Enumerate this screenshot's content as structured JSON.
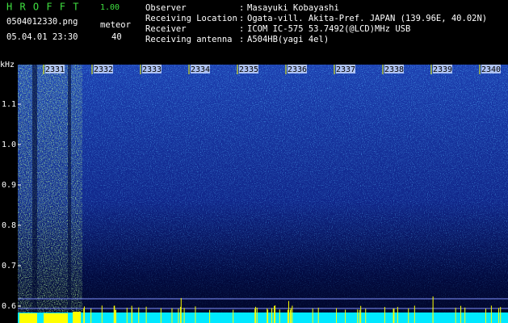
{
  "header": {
    "app": "H R O F F T",
    "version": "1.00",
    "file": "0504012330.png",
    "mode": "meteor",
    "count": "40",
    "datetime": "05.04.01 23:30",
    "separator": ":",
    "fields": [
      {
        "label": "Observer",
        "value": "Masayuki Kobayashi"
      },
      {
        "label": "Receiving Location",
        "value": "Ogata-vill. Akita-Pref. JAPAN (139.96E, 40.02N)"
      },
      {
        "label": "Receiver",
        "value": "ICOM IC-575 53.7492(@LCD)MHz USB"
      },
      {
        "label": "Receiving antenna",
        "value": "A504HB(yagi 4el)"
      }
    ]
  },
  "axis": {
    "unit": "kHz",
    "y_labels": [
      "1.1",
      "1.0",
      "0.9",
      "0.8",
      "0.7",
      "0.6"
    ],
    "time_labels": [
      "2331",
      "2332",
      "2333",
      "2334",
      "2335",
      "2336",
      "2337",
      "2338",
      "2339",
      "2340"
    ]
  }
}
